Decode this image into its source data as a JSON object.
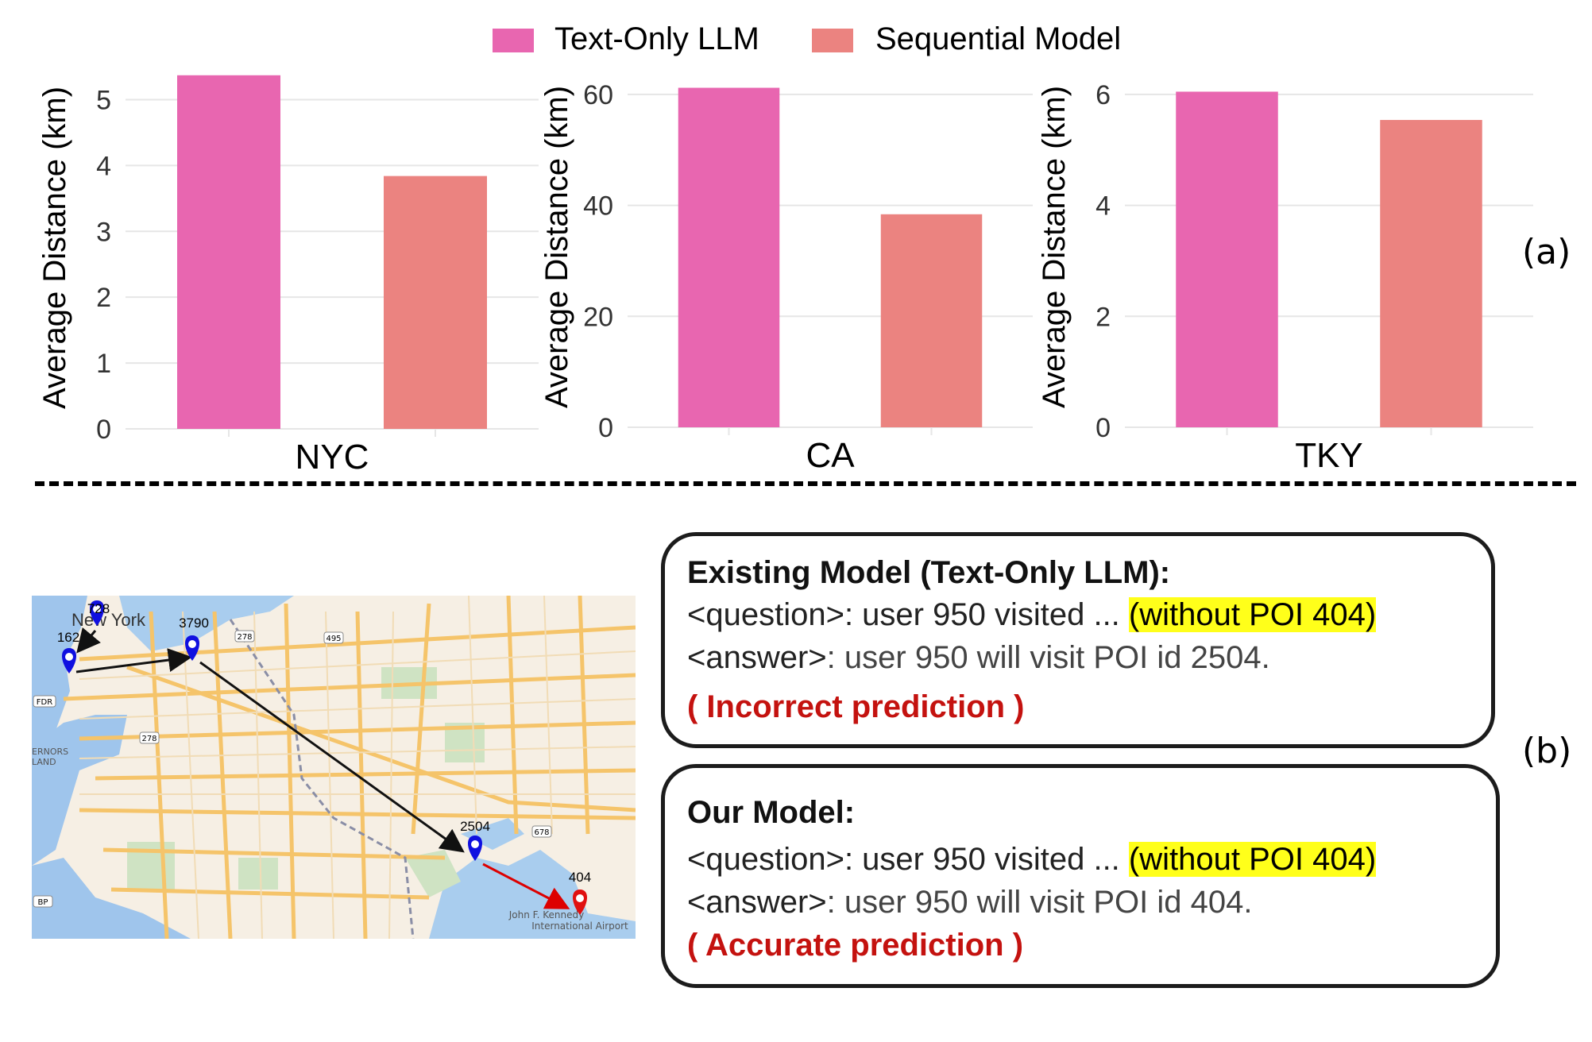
{
  "legend": {
    "items": [
      {
        "label": "Text-Only LLM",
        "color": "#e866b0"
      },
      {
        "label": "Sequential Model",
        "color": "#eb8380"
      }
    ]
  },
  "chart_data": [
    {
      "type": "bar",
      "xlabel": "NYC",
      "ylabel": "Average Distance (km)",
      "ylim": [
        0,
        5.5
      ],
      "yticks": [
        0,
        1,
        2,
        3,
        4,
        5
      ],
      "grid": true,
      "series": [
        {
          "name": "Text-Only LLM",
          "values": [
            5.37
          ]
        },
        {
          "name": "Sequential Model",
          "values": [
            3.84
          ]
        }
      ]
    },
    {
      "type": "bar",
      "xlabel": "CA",
      "ylabel": "Average Distance (km)",
      "ylim": [
        0,
        65
      ],
      "yticks": [
        0,
        20,
        40,
        60
      ],
      "grid": true,
      "series": [
        {
          "name": "Text-Only LLM",
          "values": [
            61.2
          ]
        },
        {
          "name": "Sequential Model",
          "values": [
            38.4
          ]
        }
      ]
    },
    {
      "type": "bar",
      "xlabel": "TKY",
      "ylabel": "Average Distance (km)",
      "ylim": [
        0,
        6.5
      ],
      "yticks": [
        0,
        2,
        4,
        6
      ],
      "grid": true,
      "series": [
        {
          "name": "Text-Only LLM",
          "values": [
            6.05
          ]
        },
        {
          "name": "Sequential Model",
          "values": [
            5.54
          ]
        }
      ]
    }
  ],
  "panel_labels": {
    "a": "(a)",
    "b": "(b)"
  },
  "map": {
    "pins": [
      {
        "id": "728",
        "color": "#1010e0"
      },
      {
        "id": "162",
        "color": "#1010e0"
      },
      {
        "id": "3790",
        "color": "#1010e0"
      },
      {
        "id": "2504",
        "color": "#1010e0"
      },
      {
        "id": "404",
        "color": "#e01010"
      }
    ],
    "place_labels": {
      "new_york": "New York",
      "governors": "ERNORS",
      "land": "LAND",
      "jfk_1": "John F. Kennedy",
      "jfk_2": "International Airport"
    },
    "road_shields": [
      "278",
      "495",
      "278",
      "FDR",
      "678",
      "BP"
    ]
  },
  "existing": {
    "title": "Existing Model (Text-Only LLM):",
    "q_tag": "<question>",
    "q_text": ": user 950 visited ... ",
    "q_highlight": "(without POI 404)",
    "a_tag": "<answer>",
    "a_text": ": user 950 will visit POI id 2504.",
    "verdict": "( Incorrect prediction )"
  },
  "ours": {
    "title": "Our Model:",
    "q_tag": "<question>",
    "q_text": ": user 950 visited ... ",
    "q_highlight": "(without POI 404)",
    "a_tag": "<answer>",
    "a_text": ": user 950 will visit POI id 404.",
    "verdict": "( Accurate prediction )"
  }
}
